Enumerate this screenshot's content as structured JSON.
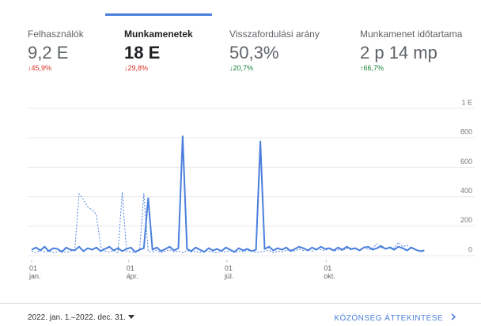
{
  "tabs": [
    {
      "label": "Felhasználók",
      "value": "9,2 E",
      "change": "↓45,9%",
      "trend": "down"
    },
    {
      "label": "Munkamenetek",
      "value": "18 E",
      "change": "↓29,8%",
      "trend": "down",
      "selected": true
    },
    {
      "label": "Visszafordulási arány",
      "value": "50,3%",
      "change": "↓20,7%",
      "trend": "down-good"
    },
    {
      "label": "Munkamenet időtartama",
      "value": "2 p 14 mp",
      "change": "↑66,7%",
      "trend": "up"
    }
  ],
  "chart_data": {
    "type": "line",
    "x": [
      0,
      4,
      8,
      12,
      16,
      20,
      24,
      28,
      32,
      36,
      40,
      44,
      48,
      52,
      56,
      60,
      64,
      68,
      72,
      76,
      80,
      84,
      88,
      92,
      96,
      100,
      104,
      108,
      112,
      116,
      120,
      124,
      128,
      132,
      136,
      140,
      144,
      148,
      152,
      156,
      160,
      164,
      168,
      172,
      176,
      180,
      184,
      188,
      192,
      196,
      200,
      204,
      208,
      212,
      216,
      220,
      224,
      228,
      232,
      236,
      240,
      244,
      248,
      252,
      256,
      260,
      264,
      268,
      272,
      276,
      280,
      284,
      288,
      292,
      296,
      300,
      304,
      308,
      312,
      316,
      320,
      324,
      328,
      332,
      336,
      340,
      344,
      348,
      352,
      356,
      360,
      364
    ],
    "series": [
      {
        "color": "#4a7fdc",
        "dash": false,
        "values": [
          40,
          55,
          35,
          60,
          30,
          50,
          45,
          25,
          55,
          40,
          35,
          60,
          30,
          50,
          40,
          55,
          30,
          45,
          60,
          35,
          50,
          30,
          45,
          55,
          25,
          40,
          50,
          390,
          40,
          55,
          30,
          45,
          60,
          35,
          50,
          810,
          45,
          30,
          55,
          40,
          25,
          50,
          35,
          45,
          30,
          55,
          40,
          25,
          50,
          35,
          45,
          30,
          40,
          775,
          45,
          60,
          35,
          50,
          40,
          55,
          30,
          45,
          60,
          50,
          35,
          55,
          40,
          60,
          45,
          50,
          35,
          55,
          40,
          60,
          45,
          50,
          35,
          55,
          60,
          40,
          50,
          65,
          45,
          55,
          40,
          60,
          50,
          35,
          55,
          40,
          30,
          35
        ]
      },
      {
        "color": "#4a7fdc",
        "dash": true,
        "values": [
          30,
          20,
          35,
          25,
          30,
          20,
          25,
          35,
          20,
          30,
          40,
          420,
          380,
          330,
          310,
          280,
          60,
          30,
          25,
          35,
          20,
          430,
          30,
          25,
          20,
          35,
          420,
          30,
          25,
          35,
          20,
          30,
          40,
          25,
          30,
          20,
          35,
          25,
          30,
          20,
          35,
          30,
          25,
          20,
          30,
          25,
          35,
          20,
          30,
          25,
          35,
          30,
          20,
          25,
          30,
          35,
          20,
          30,
          25,
          35,
          40,
          30,
          45,
          35,
          40,
          30,
          50,
          40,
          35,
          45,
          30,
          40,
          35,
          50,
          40,
          45,
          35,
          60,
          40,
          50,
          80,
          55,
          45,
          60,
          50,
          90,
          60,
          70,
          50,
          40,
          30,
          25
        ]
      }
    ],
    "xlim": [
      0,
      385
    ],
    "xticks": [
      {
        "value": 0,
        "label": "01\njan."
      },
      {
        "value": 90,
        "label": "01\nápr."
      },
      {
        "value": 181,
        "label": "01\njúl."
      },
      {
        "value": 273,
        "label": "01\nokt."
      }
    ],
    "ylim": [
      0,
      1000
    ],
    "yticks": [
      0,
      200,
      400,
      600,
      800,
      {
        "value": 1000,
        "label": "1 E"
      }
    ],
    "grid": true
  },
  "footer": {
    "date_range": "2022. jan. 1.–2022. dec. 31.",
    "link": "KÖZÖNSÉG ÁTTEKINTÉSE"
  }
}
